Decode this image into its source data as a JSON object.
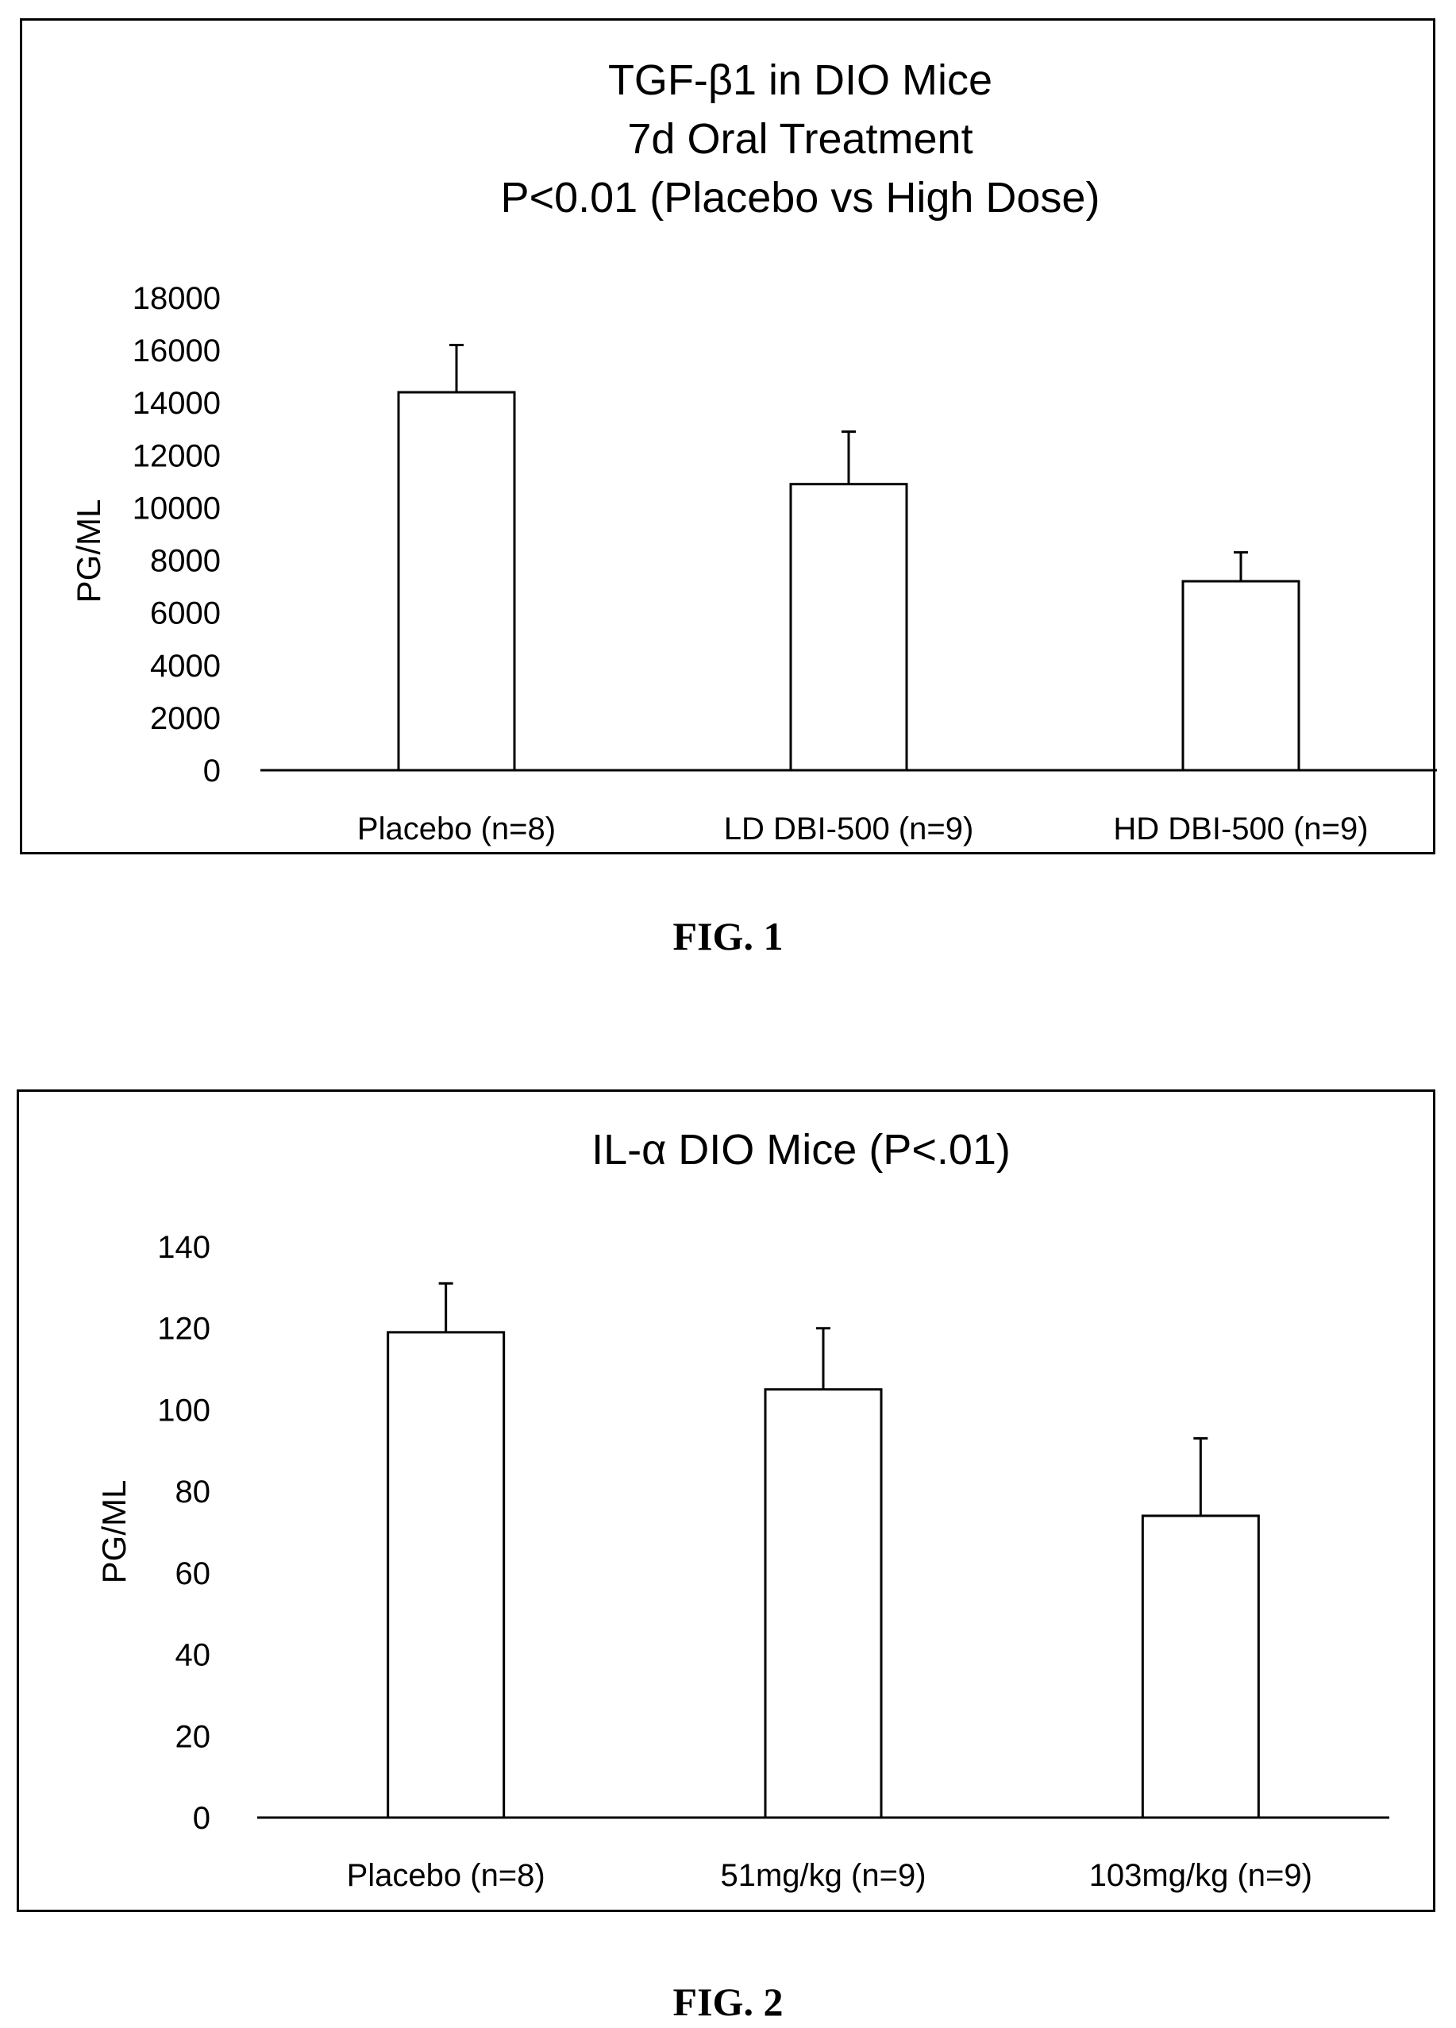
{
  "figures": [
    {
      "caption": "FIG. 1",
      "chart_data": {
        "type": "bar",
        "title_lines": [
          "TGF-β1 in DIO Mice",
          "7d Oral Treatment",
          "P<0.01 (Placebo vs High Dose)"
        ],
        "ylabel": "PG/ML",
        "xlabel": "",
        "categories": [
          "Placebo (n=8)",
          "LD DBI-500 (n=9)",
          "HD DBI-500 (n=9)"
        ],
        "values": [
          14400,
          10900,
          7200
        ],
        "error_upper": [
          1800,
          2000,
          1100
        ],
        "ylim": [
          0,
          18000
        ],
        "yticks": [
          0,
          2000,
          4000,
          6000,
          8000,
          10000,
          12000,
          14000,
          16000,
          18000
        ],
        "grid": false,
        "legend": "none"
      }
    },
    {
      "caption": "FIG. 2",
      "chart_data": {
        "type": "bar",
        "title_lines": [
          "IL-α DIO Mice (P<.01)"
        ],
        "ylabel": "PG/ML",
        "xlabel": "",
        "categories": [
          "Placebo (n=8)",
          "51mg/kg (n=9)",
          "103mg/kg (n=9)"
        ],
        "values": [
          119,
          105,
          74
        ],
        "error_upper": [
          12,
          15,
          19
        ],
        "ylim": [
          0,
          140
        ],
        "yticks": [
          0,
          20,
          40,
          60,
          80,
          100,
          120,
          140
        ],
        "grid": false,
        "legend": "none"
      }
    }
  ]
}
